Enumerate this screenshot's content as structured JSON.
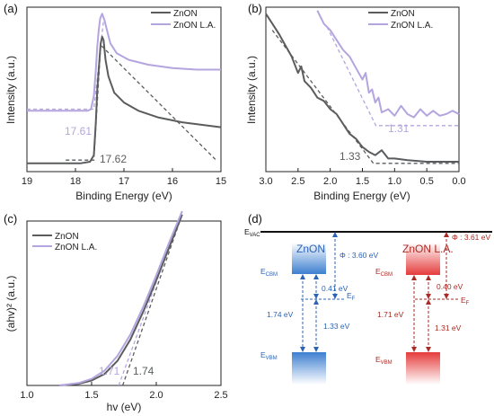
{
  "colors": {
    "dark": "#5a5c5e",
    "light": "#b4a5df",
    "blue": "#2c63b5",
    "red": "#a92b25",
    "axis": "#222222"
  },
  "chart_data": [
    {
      "panel": "(a)",
      "type": "line",
      "xlabel": "Binding Energy (eV)",
      "ylabel": "Intensity (a.u.)",
      "xlim": [
        19,
        15
      ],
      "xticks": [
        "19",
        "18",
        "17",
        "16",
        "15"
      ],
      "series": [
        {
          "name": "ZnON",
          "x": [
            19,
            17.9,
            17.7,
            17.62,
            17.58,
            17.55,
            17.5,
            17.48,
            17.45,
            17.42,
            17.38,
            17.32,
            17.2,
            17.0,
            16.7,
            16.3,
            15.8,
            15.0
          ],
          "y": [
            0.05,
            0.05,
            0.06,
            0.1,
            0.3,
            0.5,
            0.7,
            0.78,
            0.82,
            0.8,
            0.68,
            0.58,
            0.48,
            0.42,
            0.37,
            0.33,
            0.3,
            0.27
          ]
        },
        {
          "name": "ZnON L.A.",
          "x": [
            19,
            17.75,
            17.68,
            17.62,
            17.58,
            17.55,
            17.52,
            17.49,
            17.45,
            17.4,
            17.35,
            17.28,
            17.15,
            16.9,
            16.5,
            16.0,
            15.5,
            15.0
          ],
          "y": [
            0.37,
            0.37,
            0.38,
            0.46,
            0.62,
            0.76,
            0.86,
            0.93,
            0.96,
            0.92,
            0.86,
            0.78,
            0.72,
            0.68,
            0.65,
            0.63,
            0.62,
            0.62
          ]
        }
      ],
      "fits": [
        {
          "x": [
            19,
            17.75,
            17.62,
            17.42
          ],
          "y": [
            0.38,
            0.38,
            0.38,
            0.92
          ]
        },
        {
          "x": [
            18.2,
            17.62,
            17.48,
            15.1
          ],
          "y": [
            0.07,
            0.07,
            0.77,
            0.07
          ]
        }
      ],
      "annotations": [
        "17.61",
        "17.62"
      ],
      "legend": "top-right"
    },
    {
      "panel": "(b)",
      "type": "line",
      "xlabel": "Binding Energy (eV)",
      "ylabel": "Intensity (a.u.)",
      "xlim": [
        3.0,
        0.0
      ],
      "xticks": [
        "3.0",
        "2.5",
        "2.0",
        "1.5",
        "1.0",
        "0.5",
        "0.0"
      ],
      "series": [
        {
          "name": "ZnON",
          "x": [
            3.0,
            2.9,
            2.8,
            2.7,
            2.6,
            2.5,
            2.45,
            2.4,
            2.3,
            2.2,
            2.1,
            2.0,
            1.9,
            1.8,
            1.7,
            1.6,
            1.5,
            1.4,
            1.3,
            1.2,
            1.1,
            1.0,
            0.8,
            0.5,
            0.2,
            0.0
          ],
          "y": [
            0.96,
            0.9,
            0.84,
            0.77,
            0.7,
            0.6,
            0.64,
            0.55,
            0.51,
            0.45,
            0.43,
            0.38,
            0.35,
            0.29,
            0.23,
            0.2,
            0.15,
            0.12,
            0.1,
            0.13,
            0.08,
            0.08,
            0.07,
            0.06,
            0.06,
            0.06
          ]
        },
        {
          "name": "ZnON L.A.",
          "x": [
            2.2,
            2.1,
            2.0,
            1.9,
            1.8,
            1.7,
            1.6,
            1.5,
            1.45,
            1.4,
            1.35,
            1.3,
            1.25,
            1.2,
            1.1,
            1.0,
            0.9,
            0.8,
            0.7,
            0.6,
            0.5,
            0.4,
            0.3,
            0.2,
            0.1,
            0.0
          ],
          "y": [
            0.98,
            0.9,
            0.86,
            0.8,
            0.74,
            0.7,
            0.63,
            0.56,
            0.6,
            0.48,
            0.5,
            0.42,
            0.45,
            0.36,
            0.38,
            0.34,
            0.4,
            0.35,
            0.33,
            0.38,
            0.34,
            0.37,
            0.34,
            0.35,
            0.37,
            0.35
          ]
        }
      ],
      "fits": [
        {
          "x": [
            2.05,
            1.29,
            0.0
          ],
          "y": [
            0.88,
            0.28,
            0.28
          ]
        },
        {
          "x": [
            2.9,
            1.33,
            0.0
          ],
          "y": [
            0.86,
            0.05,
            0.05
          ]
        }
      ],
      "annotations": [
        "1.31",
        "1.33"
      ],
      "legend": "top-right"
    },
    {
      "panel": "(c)",
      "type": "line",
      "xlabel": "hv (eV)",
      "ylabel": "(ahv)² (a.u.)",
      "xlim": [
        1.0,
        2.5
      ],
      "xticks": [
        "1.0",
        "1.5",
        "2.0",
        "2.5"
      ],
      "series": [
        {
          "name": "ZnON",
          "x": [
            1.25,
            1.4,
            1.5,
            1.6,
            1.7,
            1.8,
            1.9,
            2.0,
            2.1,
            2.2
          ],
          "y": [
            0.0,
            0.01,
            0.03,
            0.07,
            0.15,
            0.28,
            0.45,
            0.64,
            0.84,
            1.04
          ]
        },
        {
          "name": "ZnON L.A.",
          "x": [
            1.25,
            1.4,
            1.5,
            1.6,
            1.7,
            1.8,
            1.9,
            2.0,
            2.1,
            2.2
          ],
          "y": [
            0.0,
            0.015,
            0.04,
            0.09,
            0.18,
            0.31,
            0.48,
            0.67,
            0.87,
            1.06
          ]
        }
      ],
      "fits": [
        {
          "x": [
            1.71,
            2.19
          ],
          "y": [
            0.0,
            1.04
          ]
        },
        {
          "x": [
            1.74,
            2.2
          ],
          "y": [
            0.0,
            1.04
          ]
        }
      ],
      "annotations": [
        "1.71",
        "1.74"
      ],
      "legend": "top-left"
    }
  ],
  "band_diagram": {
    "panel": "(d)",
    "evac": "E",
    "evac_sub": "VAC",
    "left": {
      "name": "ZnON",
      "ecbm": "E",
      "ecbm_sub": "CBM",
      "evbm": "E",
      "evbm_sub": "VBM",
      "ef": "E",
      "ef_sub": "F",
      "phi": "Φ : 3.60 eV",
      "cbm_ef": "0.41 eV",
      "gap": "1.74 eV",
      "vbm_ef": "1.33 eV"
    },
    "right": {
      "name": "ZnON L.A.",
      "ecbm": "E",
      "ecbm_sub": "CBM",
      "evbm": "E",
      "evbm_sub": "VBM",
      "ef": "E",
      "ef_sub": "F",
      "phi": "Φ : 3.61 eV",
      "cbm_ef": "0.40 eV",
      "gap": "1.71 eV",
      "vbm_ef": "1.31 eV"
    }
  }
}
